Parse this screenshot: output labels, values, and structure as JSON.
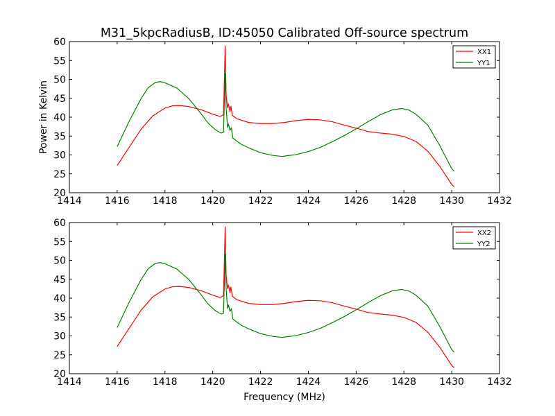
{
  "title": "M31_5kpcRadiusB, ID:45050 Calibrated Off-source spectrum",
  "chart_data": [
    {
      "type": "line",
      "xlabel": "",
      "ylabel": "Power in Kelvin",
      "xlim": [
        1414,
        1432
      ],
      "ylim": [
        20,
        60
      ],
      "xticks": [
        "1414",
        "1416",
        "1418",
        "1420",
        "1422",
        "1424",
        "1426",
        "1428",
        "1430",
        "1432"
      ],
      "yticks": [
        "20",
        "25",
        "30",
        "35",
        "40",
        "45",
        "50",
        "55",
        "60"
      ],
      "legend": "top-right",
      "grid": false,
      "series": [
        {
          "name": "XX1",
          "color": "#ff0000",
          "points": [
            [
              1416.0,
              27.2
            ],
            [
              1416.5,
              32.0
            ],
            [
              1417.0,
              36.8
            ],
            [
              1417.5,
              40.4
            ],
            [
              1418.0,
              42.4
            ],
            [
              1418.3,
              43.0
            ],
            [
              1418.6,
              43.1
            ],
            [
              1419.0,
              42.8
            ],
            [
              1419.5,
              42.0
            ],
            [
              1420.0,
              40.8
            ],
            [
              1420.3,
              40.2
            ],
            [
              1420.45,
              40.6
            ],
            [
              1420.52,
              58.8
            ],
            [
              1420.56,
              46.0
            ],
            [
              1420.62,
              42.5
            ],
            [
              1420.66,
              43.5
            ],
            [
              1420.72,
              41.4
            ],
            [
              1420.76,
              42.9
            ],
            [
              1420.82,
              40.5
            ],
            [
              1421.0,
              39.6
            ],
            [
              1421.2,
              39.2
            ],
            [
              1421.5,
              38.6
            ],
            [
              1422.0,
              38.3
            ],
            [
              1422.5,
              38.3
            ],
            [
              1423.0,
              38.6
            ],
            [
              1423.5,
              39.1
            ],
            [
              1424.0,
              39.4
            ],
            [
              1424.5,
              39.3
            ],
            [
              1425.0,
              38.8
            ],
            [
              1425.5,
              37.9
            ],
            [
              1426.0,
              37.1
            ],
            [
              1426.5,
              36.2
            ],
            [
              1427.0,
              35.8
            ],
            [
              1427.5,
              35.5
            ],
            [
              1428.0,
              34.9
            ],
            [
              1428.5,
              33.6
            ],
            [
              1429.0,
              31.0
            ],
            [
              1429.5,
              27.0
            ],
            [
              1430.0,
              22.2
            ],
            [
              1430.1,
              21.6
            ]
          ]
        },
        {
          "name": "YY1",
          "color": "#008000",
          "points": [
            [
              1416.0,
              32.2
            ],
            [
              1416.5,
              38.9
            ],
            [
              1417.0,
              44.9
            ],
            [
              1417.3,
              47.8
            ],
            [
              1417.6,
              49.2
            ],
            [
              1417.8,
              49.4
            ],
            [
              1418.0,
              49.1
            ],
            [
              1418.5,
              47.7
            ],
            [
              1419.0,
              44.9
            ],
            [
              1419.5,
              41.0
            ],
            [
              1419.8,
              38.5
            ],
            [
              1420.1,
              36.7
            ],
            [
              1420.35,
              35.8
            ],
            [
              1420.45,
              36.0
            ],
            [
              1420.52,
              51.6
            ],
            [
              1420.56,
              42.5
            ],
            [
              1420.62,
              37.3
            ],
            [
              1420.66,
              38.2
            ],
            [
              1420.72,
              36.5
            ],
            [
              1420.78,
              37.2
            ],
            [
              1420.84,
              34.5
            ],
            [
              1421.0,
              33.7
            ],
            [
              1421.2,
              32.8
            ],
            [
              1421.5,
              31.9
            ],
            [
              1422.0,
              30.6
            ],
            [
              1422.5,
              29.9
            ],
            [
              1422.9,
              29.6
            ],
            [
              1423.0,
              29.7
            ],
            [
              1423.5,
              30.1
            ],
            [
              1424.0,
              30.9
            ],
            [
              1424.5,
              32.0
            ],
            [
              1425.0,
              33.5
            ],
            [
              1425.5,
              35.1
            ],
            [
              1426.0,
              36.9
            ],
            [
              1426.5,
              38.8
            ],
            [
              1427.0,
              40.6
            ],
            [
              1427.5,
              41.9
            ],
            [
              1427.9,
              42.3
            ],
            [
              1428.2,
              41.9
            ],
            [
              1428.5,
              40.8
            ],
            [
              1429.0,
              37.9
            ],
            [
              1429.5,
              32.5
            ],
            [
              1430.0,
              26.4
            ],
            [
              1430.1,
              25.7
            ]
          ]
        }
      ]
    },
    {
      "type": "line",
      "xlabel": "Frequency (MHz)",
      "ylabel": "",
      "xlim": [
        1414,
        1432
      ],
      "ylim": [
        20,
        60
      ],
      "xticks": [
        "1414",
        "1416",
        "1418",
        "1420",
        "1422",
        "1424",
        "1426",
        "1428",
        "1430",
        "1432"
      ],
      "yticks": [
        "20",
        "25",
        "30",
        "35",
        "40",
        "45",
        "50",
        "55",
        "60"
      ],
      "legend": "top-right",
      "grid": false,
      "series": [
        {
          "name": "XX2",
          "color": "#ff0000",
          "points": [
            [
              1416.0,
              27.2
            ],
            [
              1416.5,
              32.0
            ],
            [
              1417.0,
              36.8
            ],
            [
              1417.5,
              40.4
            ],
            [
              1418.0,
              42.4
            ],
            [
              1418.3,
              43.0
            ],
            [
              1418.6,
              43.1
            ],
            [
              1419.0,
              42.8
            ],
            [
              1419.5,
              42.0
            ],
            [
              1420.0,
              40.8
            ],
            [
              1420.3,
              40.2
            ],
            [
              1420.45,
              40.6
            ],
            [
              1420.52,
              58.8
            ],
            [
              1420.56,
              46.0
            ],
            [
              1420.62,
              42.5
            ],
            [
              1420.66,
              43.5
            ],
            [
              1420.72,
              41.4
            ],
            [
              1420.76,
              42.9
            ],
            [
              1420.82,
              40.5
            ],
            [
              1421.0,
              39.6
            ],
            [
              1421.2,
              39.2
            ],
            [
              1421.5,
              38.6
            ],
            [
              1422.0,
              38.3
            ],
            [
              1422.5,
              38.3
            ],
            [
              1423.0,
              38.6
            ],
            [
              1423.5,
              39.1
            ],
            [
              1424.0,
              39.4
            ],
            [
              1424.5,
              39.3
            ],
            [
              1425.0,
              38.8
            ],
            [
              1425.5,
              37.9
            ],
            [
              1426.0,
              37.1
            ],
            [
              1426.5,
              36.2
            ],
            [
              1427.0,
              35.8
            ],
            [
              1427.5,
              35.5
            ],
            [
              1428.0,
              34.9
            ],
            [
              1428.5,
              33.6
            ],
            [
              1429.0,
              31.0
            ],
            [
              1429.5,
              27.0
            ],
            [
              1430.0,
              22.2
            ],
            [
              1430.1,
              21.6
            ]
          ]
        },
        {
          "name": "YY2",
          "color": "#008000",
          "points": [
            [
              1416.0,
              32.2
            ],
            [
              1416.5,
              38.9
            ],
            [
              1417.0,
              44.9
            ],
            [
              1417.3,
              47.8
            ],
            [
              1417.6,
              49.2
            ],
            [
              1417.8,
              49.4
            ],
            [
              1418.0,
              49.1
            ],
            [
              1418.5,
              47.7
            ],
            [
              1419.0,
              44.9
            ],
            [
              1419.5,
              41.0
            ],
            [
              1419.8,
              38.5
            ],
            [
              1420.1,
              36.7
            ],
            [
              1420.35,
              35.8
            ],
            [
              1420.45,
              36.0
            ],
            [
              1420.52,
              51.6
            ],
            [
              1420.56,
              42.5
            ],
            [
              1420.62,
              37.3
            ],
            [
              1420.66,
              38.2
            ],
            [
              1420.72,
              36.5
            ],
            [
              1420.78,
              37.2
            ],
            [
              1420.84,
              34.5
            ],
            [
              1421.0,
              33.7
            ],
            [
              1421.2,
              32.8
            ],
            [
              1421.5,
              31.9
            ],
            [
              1422.0,
              30.6
            ],
            [
              1422.5,
              29.9
            ],
            [
              1422.9,
              29.6
            ],
            [
              1423.0,
              29.7
            ],
            [
              1423.5,
              30.1
            ],
            [
              1424.0,
              30.9
            ],
            [
              1424.5,
              32.0
            ],
            [
              1425.0,
              33.5
            ],
            [
              1425.5,
              35.1
            ],
            [
              1426.0,
              36.9
            ],
            [
              1426.5,
              38.8
            ],
            [
              1427.0,
              40.6
            ],
            [
              1427.5,
              41.9
            ],
            [
              1427.9,
              42.3
            ],
            [
              1428.2,
              41.9
            ],
            [
              1428.5,
              40.8
            ],
            [
              1429.0,
              37.9
            ],
            [
              1429.5,
              32.5
            ],
            [
              1430.0,
              26.4
            ],
            [
              1430.1,
              25.7
            ]
          ]
        }
      ]
    }
  ]
}
